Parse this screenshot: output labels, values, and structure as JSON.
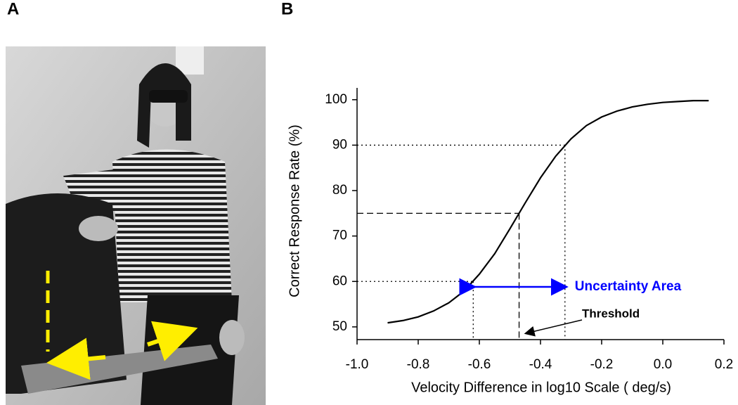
{
  "panel_labels": [
    "A",
    "B"
  ],
  "chart_data": {
    "type": "line",
    "x_label": "Velocity Difference in log10 Scale ( deg/s)",
    "y_label": "Correct Response Rate (%)",
    "x": [
      -0.9,
      -0.85,
      -0.8,
      -0.75,
      -0.7,
      -0.65,
      -0.6,
      -0.55,
      -0.5,
      -0.45,
      -0.4,
      -0.35,
      -0.3,
      -0.25,
      -0.2,
      -0.15,
      -0.1,
      -0.05,
      0.0,
      0.05,
      0.1,
      0.15
    ],
    "values": [
      50.9,
      51.4,
      52.2,
      53.5,
      55.3,
      57.9,
      61.6,
      66.1,
      71.6,
      77.3,
      82.8,
      87.6,
      91.4,
      94.3,
      96.2,
      97.5,
      98.4,
      99.0,
      99.4,
      99.6,
      99.8,
      99.8
    ],
    "color": "#000000",
    "xlim": [
      -1.0,
      0.2
    ],
    "ylim": [
      47.2,
      102.6
    ],
    "xticks": [
      {
        "value": -1.0,
        "label": "-1.0"
      },
      -0.8,
      -0.6,
      -0.4,
      -0.2,
      {
        "value": 0.0,
        "label": "0.0"
      },
      0.2
    ],
    "yticks": [
      50,
      60,
      70,
      80,
      90,
      100
    ],
    "reference_lines": [
      {
        "x": -0.62,
        "y": 60,
        "style": "dotted"
      },
      {
        "x": -0.47,
        "y": 75,
        "style": "dashed"
      },
      {
        "x": -0.32,
        "y": 90,
        "style": "dotted"
      }
    ],
    "annotations": [
      {
        "text": "Uncertainty Area",
        "color": "#0000ff",
        "x_from": -0.62,
        "x_to": -0.32,
        "y": 58.8
      },
      {
        "text": "Threshold",
        "color": "#000000",
        "x": -0.47
      }
    ]
  }
}
